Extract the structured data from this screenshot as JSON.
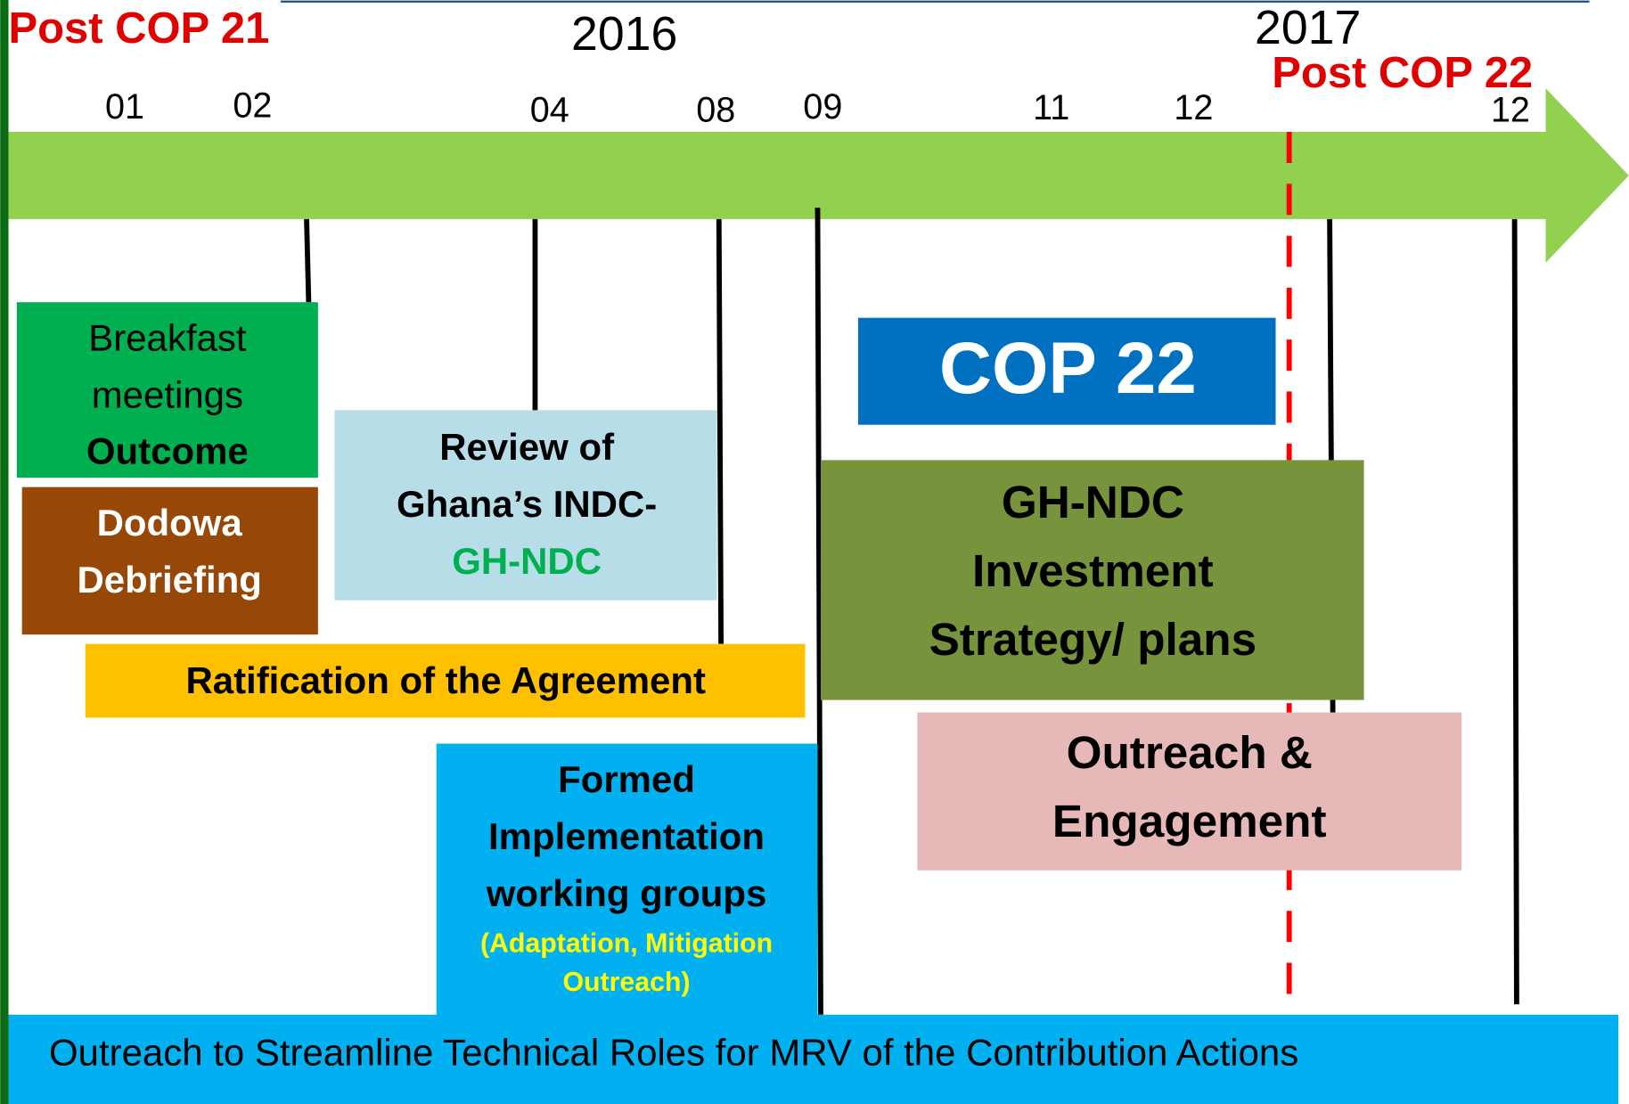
{
  "header": {
    "left": "Post COP 21",
    "year_2016": "2016",
    "year_2017": "2017",
    "right": "Post COP 22"
  },
  "months": [
    "01",
    "02",
    "04",
    "08",
    "09",
    "11",
    "12",
    "12"
  ],
  "boxes": [
    {
      "lines": [
        "Breakfast",
        "meetings",
        "Outcome"
      ]
    },
    {
      "lines": [
        "Dodowa",
        "Debriefing"
      ]
    },
    {
      "lines": [
        "Review of",
        "Ghana’s INDC-",
        "GH-NDC"
      ]
    },
    {
      "lines": [
        "Ratification of the Agreement"
      ]
    },
    {
      "lines": [
        "Formed",
        "Implementation",
        "working groups",
        "(Adaptation, Mitigation",
        "Outreach)"
      ]
    },
    {
      "lines": [
        "COP 22"
      ]
    },
    {
      "lines": [
        "GH-NDC",
        "Investment",
        "Strategy/ plans"
      ]
    },
    {
      "lines": [
        "Outreach &",
        "Engagement"
      ]
    }
  ],
  "footer": "Outreach to Streamline Technical Roles for MRV of the Contribution Actions"
}
